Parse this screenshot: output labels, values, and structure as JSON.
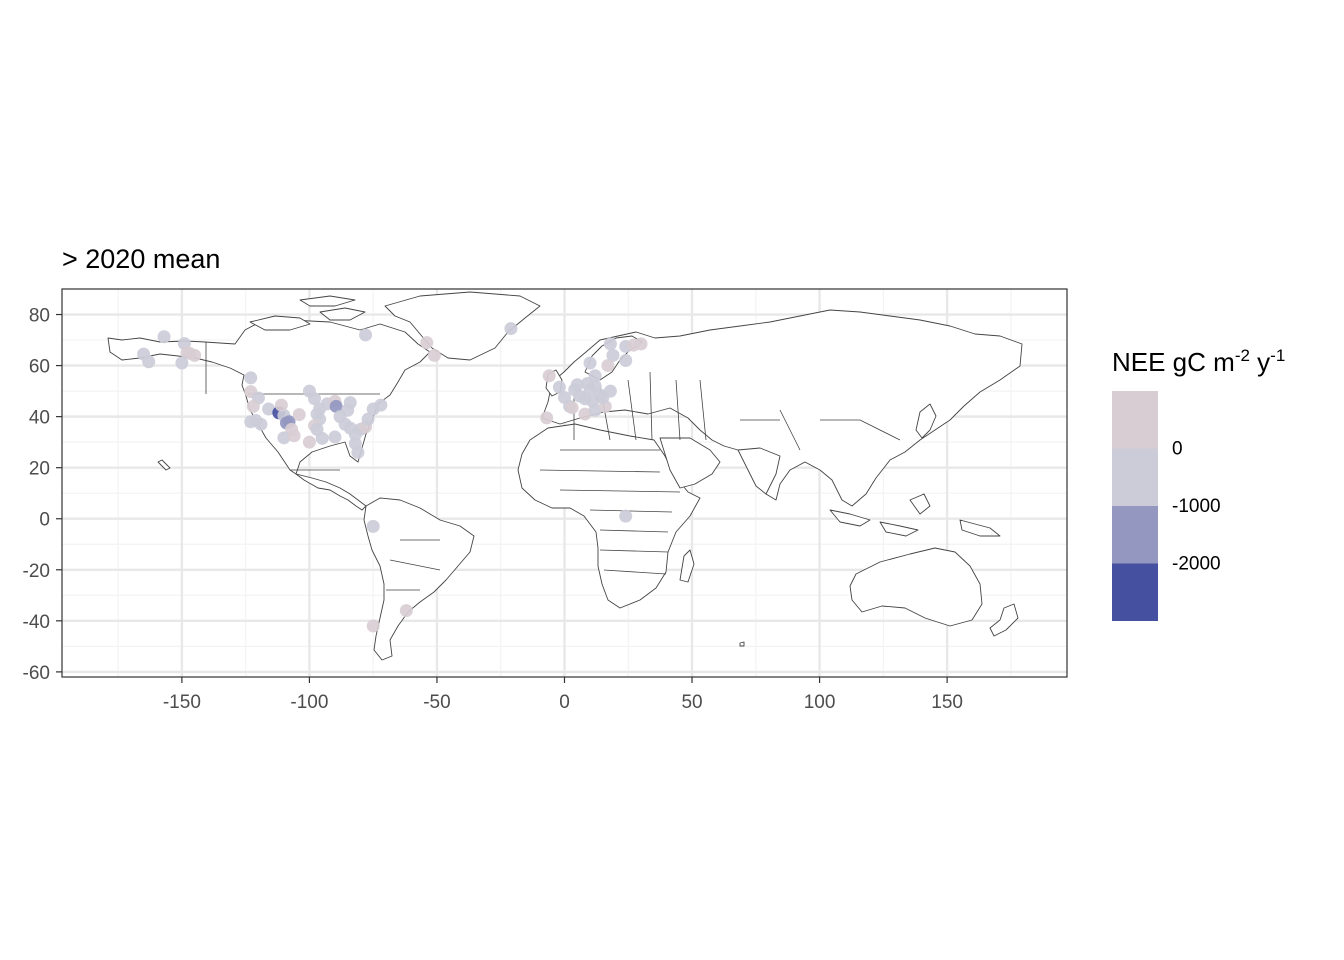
{
  "chart_data": {
    "type": "scatter",
    "title": "> 2020 mean",
    "xlabel": "",
    "ylabel": "",
    "xlim": [
      -197,
      197
    ],
    "ylim": [
      -62,
      90
    ],
    "xticks": [
      -150,
      -100,
      -50,
      0,
      50,
      100,
      150
    ],
    "yticks": [
      80,
      60,
      40,
      20,
      0,
      -20,
      -40,
      -60
    ],
    "xtick_labels": [
      "-150",
      "-100",
      "-50",
      "0",
      "50",
      "100",
      "150"
    ],
    "ytick_labels": [
      "80",
      "60",
      "40",
      "20",
      "0",
      "-20",
      "-40",
      "-60"
    ],
    "grid": true,
    "legend_placement": "right",
    "legend": {
      "title_main": "NEE gC m",
      "title_sup1": "-2",
      "title_mid": " y",
      "title_sup2": "-1",
      "bins": [
        {
          "label": "",
          "color": "#d8cdd2"
        },
        {
          "label": "0",
          "color": "#cbccd8"
        },
        {
          "label": "-1000",
          "color": "#9497c0"
        },
        {
          "label": "-2000",
          "color": "#4650a0"
        }
      ]
    },
    "points": [
      {
        "lon": -157,
        "lat": 71.3,
        "color": "#cbccd8"
      },
      {
        "lon": -165,
        "lat": 64.5,
        "color": "#cbccd8"
      },
      {
        "lon": -163,
        "lat": 61.5,
        "color": "#cbccd8"
      },
      {
        "lon": -149,
        "lat": 68.6,
        "color": "#cbccd8"
      },
      {
        "lon": -148,
        "lat": 65.0,
        "color": "#d8cdd2"
      },
      {
        "lon": -147,
        "lat": 64.8,
        "color": "#d8cdd2"
      },
      {
        "lon": -145,
        "lat": 64.0,
        "color": "#d8cdd2"
      },
      {
        "lon": -150,
        "lat": 61.0,
        "color": "#cbccd8"
      },
      {
        "lon": -123,
        "lat": 55.2,
        "color": "#cbccd8"
      },
      {
        "lon": -123,
        "lat": 49.8,
        "color": "#d8cdd2"
      },
      {
        "lon": -120,
        "lat": 47.3,
        "color": "#cbccd8"
      },
      {
        "lon": -122,
        "lat": 44.0,
        "color": "#d8cdd2"
      },
      {
        "lon": -121,
        "lat": 38.5,
        "color": "#cbccd8"
      },
      {
        "lon": -123,
        "lat": 38.0,
        "color": "#cbccd8"
      },
      {
        "lon": -119,
        "lat": 37.0,
        "color": "#cbccd8"
      },
      {
        "lon": -116,
        "lat": 43.0,
        "color": "#cbccd8"
      },
      {
        "lon": -112,
        "lat": 41.5,
        "color": "#4650a0"
      },
      {
        "lon": -110,
        "lat": 40.5,
        "color": "#cbccd8"
      },
      {
        "lon": -109,
        "lat": 37.5,
        "color": "#9497c0"
      },
      {
        "lon": -108,
        "lat": 38.0,
        "color": "#9497c0"
      },
      {
        "lon": -111,
        "lat": 44.5,
        "color": "#d8cdd2"
      },
      {
        "lon": -107,
        "lat": 35.0,
        "color": "#d8cdd2"
      },
      {
        "lon": -110,
        "lat": 31.7,
        "color": "#cbccd8"
      },
      {
        "lon": -106,
        "lat": 32.5,
        "color": "#d8cdd2"
      },
      {
        "lon": -104,
        "lat": 40.8,
        "color": "#d8cdd2"
      },
      {
        "lon": -100,
        "lat": 50.0,
        "color": "#cbccd8"
      },
      {
        "lon": -98,
        "lat": 47.0,
        "color": "#cbccd8"
      },
      {
        "lon": -96,
        "lat": 43.0,
        "color": "#cbccd8"
      },
      {
        "lon": -97,
        "lat": 41.0,
        "color": "#cbccd8"
      },
      {
        "lon": -96,
        "lat": 39.0,
        "color": "#cbccd8"
      },
      {
        "lon": -98,
        "lat": 36.5,
        "color": "#d8cdd2"
      },
      {
        "lon": -97,
        "lat": 35.0,
        "color": "#cbccd8"
      },
      {
        "lon": -100,
        "lat": 30.0,
        "color": "#d8cdd2"
      },
      {
        "lon": -95,
        "lat": 31.5,
        "color": "#cbccd8"
      },
      {
        "lon": -93,
        "lat": 45.0,
        "color": "#cbccd8"
      },
      {
        "lon": -90,
        "lat": 46.0,
        "color": "#d8cdd2"
      },
      {
        "lon": -89.5,
        "lat": 44.0,
        "color": "#9497c0"
      },
      {
        "lon": -88,
        "lat": 40.0,
        "color": "#cbccd8"
      },
      {
        "lon": -85,
        "lat": 42.5,
        "color": "#cbccd8"
      },
      {
        "lon": -84,
        "lat": 45.5,
        "color": "#cbccd8"
      },
      {
        "lon": -86,
        "lat": 37.0,
        "color": "#cbccd8"
      },
      {
        "lon": -84,
        "lat": 35.5,
        "color": "#cbccd8"
      },
      {
        "lon": -80,
        "lat": 35.0,
        "color": "#cbccd8"
      },
      {
        "lon": -82,
        "lat": 33.0,
        "color": "#cbccd8"
      },
      {
        "lon": -78,
        "lat": 36.0,
        "color": "#d8cdd2"
      },
      {
        "lon": -77,
        "lat": 39.0,
        "color": "#cbccd8"
      },
      {
        "lon": -75,
        "lat": 43.0,
        "color": "#cbccd8"
      },
      {
        "lon": -72,
        "lat": 44.5,
        "color": "#cbccd8"
      },
      {
        "lon": -82,
        "lat": 29.5,
        "color": "#cbccd8"
      },
      {
        "lon": -81,
        "lat": 26.0,
        "color": "#cbccd8"
      },
      {
        "lon": -90,
        "lat": 32.0,
        "color": "#cbccd8"
      },
      {
        "lon": -78,
        "lat": 72.0,
        "color": "#cbccd8"
      },
      {
        "lon": -54,
        "lat": 69.0,
        "color": "#d8cdd2"
      },
      {
        "lon": -51,
        "lat": 64.0,
        "color": "#d8cdd2"
      },
      {
        "lon": -21,
        "lat": 74.5,
        "color": "#cbccd8"
      },
      {
        "lon": -75,
        "lat": -3.0,
        "color": "#cbccd8"
      },
      {
        "lon": -75,
        "lat": -42.0,
        "color": "#d8cdd2"
      },
      {
        "lon": -62,
        "lat": -36.0,
        "color": "#d8cdd2"
      },
      {
        "lon": -6,
        "lat": 56.0,
        "color": "#d8cdd2"
      },
      {
        "lon": -7,
        "lat": 39.5,
        "color": "#d8cdd2"
      },
      {
        "lon": -2,
        "lat": 51.5,
        "color": "#cbccd8"
      },
      {
        "lon": 0,
        "lat": 47.5,
        "color": "#cbccd8"
      },
      {
        "lon": 2,
        "lat": 44.0,
        "color": "#cbccd8"
      },
      {
        "lon": 4,
        "lat": 50.5,
        "color": "#cbccd8"
      },
      {
        "lon": 6,
        "lat": 48.0,
        "color": "#cbccd8"
      },
      {
        "lon": 8,
        "lat": 47.0,
        "color": "#cbccd8"
      },
      {
        "lon": 10,
        "lat": 50.5,
        "color": "#cbccd8"
      },
      {
        "lon": 12,
        "lat": 52.0,
        "color": "#cbccd8"
      },
      {
        "lon": 9,
        "lat": 53.0,
        "color": "#cbccd8"
      },
      {
        "lon": 5,
        "lat": 52.5,
        "color": "#cbccd8"
      },
      {
        "lon": 11,
        "lat": 46.0,
        "color": "#cbccd8"
      },
      {
        "lon": 14,
        "lat": 48.5,
        "color": "#cbccd8"
      },
      {
        "lon": 8,
        "lat": 41.0,
        "color": "#d8cdd2"
      },
      {
        "lon": 12,
        "lat": 42.5,
        "color": "#cbccd8"
      },
      {
        "lon": 16,
        "lat": 44.0,
        "color": "#d8cdd2"
      },
      {
        "lon": 3,
        "lat": 43.5,
        "color": "#d8cdd2"
      },
      {
        "lon": 15,
        "lat": 47.5,
        "color": "#cbccd8"
      },
      {
        "lon": 18,
        "lat": 50.0,
        "color": "#cbccd8"
      },
      {
        "lon": 12,
        "lat": 56.0,
        "color": "#cbccd8"
      },
      {
        "lon": 19,
        "lat": 64.0,
        "color": "#cbccd8"
      },
      {
        "lon": 18,
        "lat": 68.5,
        "color": "#cbccd8"
      },
      {
        "lon": 24,
        "lat": 67.5,
        "color": "#cbccd8"
      },
      {
        "lon": 27,
        "lat": 68.0,
        "color": "#d8cdd2"
      },
      {
        "lon": 24,
        "lat": 62.0,
        "color": "#cbccd8"
      },
      {
        "lon": 17,
        "lat": 60.0,
        "color": "#d8cdd2"
      },
      {
        "lon": 10,
        "lat": 61.0,
        "color": "#cbccd8"
      },
      {
        "lon": 30,
        "lat": 68.5,
        "color": "#d8cdd2"
      },
      {
        "lon": 24,
        "lat": 1.0,
        "color": "#cbccd8"
      }
    ]
  }
}
